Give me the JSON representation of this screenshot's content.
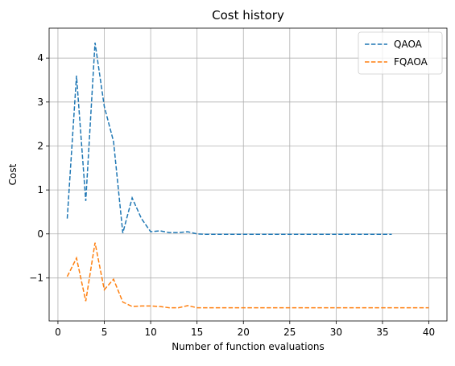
{
  "chart_data": {
    "type": "line",
    "title": "Cost history",
    "xlabel": "Number of function evaluations",
    "ylabel": "Cost",
    "xlim": [
      -0.95,
      41.95
    ],
    "ylim": [
      -1.98,
      4.68
    ],
    "xticks": [
      0,
      5,
      10,
      15,
      20,
      25,
      30,
      35,
      40
    ],
    "yticks": [
      -1,
      0,
      1,
      2,
      3,
      4
    ],
    "grid": true,
    "legend_position": "top-right",
    "series": [
      {
        "name": "QAOA",
        "color": "#1f77b4",
        "line_style": "dashed",
        "x": [
          1,
          2,
          3,
          4,
          5,
          6,
          7,
          8,
          9,
          10,
          11,
          12,
          13,
          14,
          15,
          16,
          17,
          18,
          19,
          20,
          21,
          22,
          23,
          24,
          25,
          26,
          27,
          28,
          29,
          30,
          31,
          32,
          33,
          34,
          35,
          36
        ],
        "y": [
          0.35,
          3.6,
          0.75,
          4.35,
          2.9,
          2.1,
          0.02,
          0.82,
          0.35,
          0.05,
          0.07,
          0.03,
          0.03,
          0.05,
          0.0,
          -0.01,
          -0.01,
          -0.01,
          -0.01,
          -0.01,
          -0.01,
          -0.01,
          -0.01,
          -0.01,
          -0.01,
          -0.01,
          -0.01,
          -0.01,
          -0.01,
          -0.01,
          -0.01,
          -0.01,
          -0.01,
          -0.01,
          -0.01,
          -0.01
        ]
      },
      {
        "name": "FQAOA",
        "color": "#ff7f0e",
        "line_style": "dashed",
        "x": [
          1,
          2,
          3,
          4,
          5,
          6,
          7,
          8,
          9,
          10,
          11,
          12,
          13,
          14,
          15,
          16,
          17,
          18,
          19,
          20,
          21,
          22,
          23,
          24,
          25,
          26,
          27,
          28,
          29,
          30,
          31,
          32,
          33,
          34,
          35,
          36,
          37,
          38,
          39,
          40
        ],
        "y": [
          -0.97,
          -0.55,
          -1.53,
          -0.2,
          -1.27,
          -1.03,
          -1.55,
          -1.65,
          -1.64,
          -1.64,
          -1.65,
          -1.68,
          -1.68,
          -1.63,
          -1.68,
          -1.68,
          -1.68,
          -1.68,
          -1.68,
          -1.68,
          -1.68,
          -1.68,
          -1.68,
          -1.68,
          -1.68,
          -1.68,
          -1.68,
          -1.68,
          -1.68,
          -1.68,
          -1.68,
          -1.68,
          -1.68,
          -1.68,
          -1.68,
          -1.68,
          -1.68,
          -1.68,
          -1.68,
          -1.68
        ]
      }
    ]
  }
}
